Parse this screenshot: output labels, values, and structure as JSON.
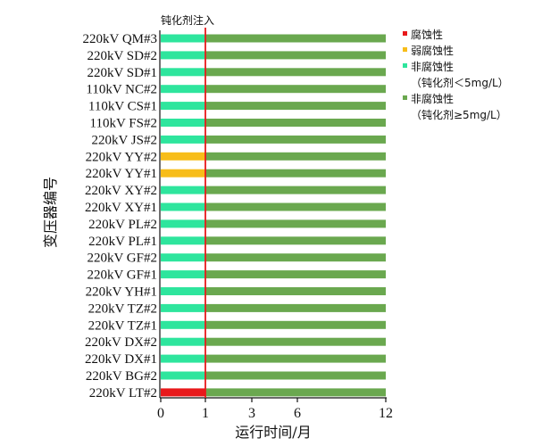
{
  "chart_data": {
    "type": "bar",
    "orientation": "horizontal",
    "stacked": true,
    "title": "",
    "xlabel": "运行时间/月",
    "ylabel": "变压器编号",
    "annotation": "钝化剂注入",
    "annotation_x": 1,
    "x_ticks": [
      0,
      1,
      3,
      6,
      12
    ],
    "xlim": [
      0,
      12
    ],
    "grid": false,
    "legend_position": "top-right",
    "colors": {
      "corrosive": "#e8191b",
      "weak": "#f7bd1a",
      "noncorrosive_low": "#2ee59d",
      "noncorrosive_high": "#6aa84f",
      "marker_line": "#e8191b"
    },
    "legend": [
      {
        "key": "corrosive",
        "label": "腐蚀性",
        "label2": ""
      },
      {
        "key": "weak",
        "label": "弱腐蚀性",
        "label2": ""
      },
      {
        "key": "noncorrosive_low",
        "label": "非腐蚀性",
        "label2": "（钝化剂＜5mg/L）"
      },
      {
        "key": "noncorrosive_high",
        "label": "非腐蚀性",
        "label2": "（钝化剂≥5mg/L）"
      }
    ],
    "categories": [
      "220kV QM#3",
      "220kV SD#2",
      "220kV SD#1",
      "110kV NC#2",
      "110kV CS#1",
      "110kV FS#2",
      "220kV JS#2",
      "220kV YY#2",
      "220kV YY#1",
      "220kV XY#2",
      "220kV XY#1",
      "220kV PL#2",
      "220kV PL#1",
      "220kV GF#2",
      "220kV GF#1",
      "220kV YH#1",
      "220kV TZ#2",
      "220kV TZ#1",
      "220kV DX#2",
      "220kV DX#1",
      "220kV BG#2",
      "220kV LT#2"
    ],
    "series": [
      {
        "key": "first_segment_state",
        "values": [
          "noncorrosive_low",
          "noncorrosive_low",
          "noncorrosive_low",
          "noncorrosive_low",
          "noncorrosive_low",
          "noncorrosive_low",
          "noncorrosive_low",
          "weak",
          "weak",
          "noncorrosive_low",
          "noncorrosive_low",
          "noncorrosive_low",
          "noncorrosive_low",
          "noncorrosive_low",
          "noncorrosive_low",
          "noncorrosive_low",
          "noncorrosive_low",
          "noncorrosive_low",
          "noncorrosive_low",
          "noncorrosive_low",
          "noncorrosive_low",
          "corrosive"
        ],
        "x_range": [
          0,
          1
        ]
      },
      {
        "key": "second_segment_state",
        "values": [
          "noncorrosive_high",
          "noncorrosive_high",
          "noncorrosive_high",
          "noncorrosive_high",
          "noncorrosive_high",
          "noncorrosive_high",
          "noncorrosive_high",
          "noncorrosive_high",
          "noncorrosive_high",
          "noncorrosive_high",
          "noncorrosive_high",
          "noncorrosive_high",
          "noncorrosive_high",
          "noncorrosive_high",
          "noncorrosive_high",
          "noncorrosive_high",
          "noncorrosive_high",
          "noncorrosive_high",
          "noncorrosive_high",
          "noncorrosive_high",
          "noncorrosive_high",
          "noncorrosive_high"
        ],
        "x_range": [
          1,
          12
        ]
      }
    ]
  }
}
